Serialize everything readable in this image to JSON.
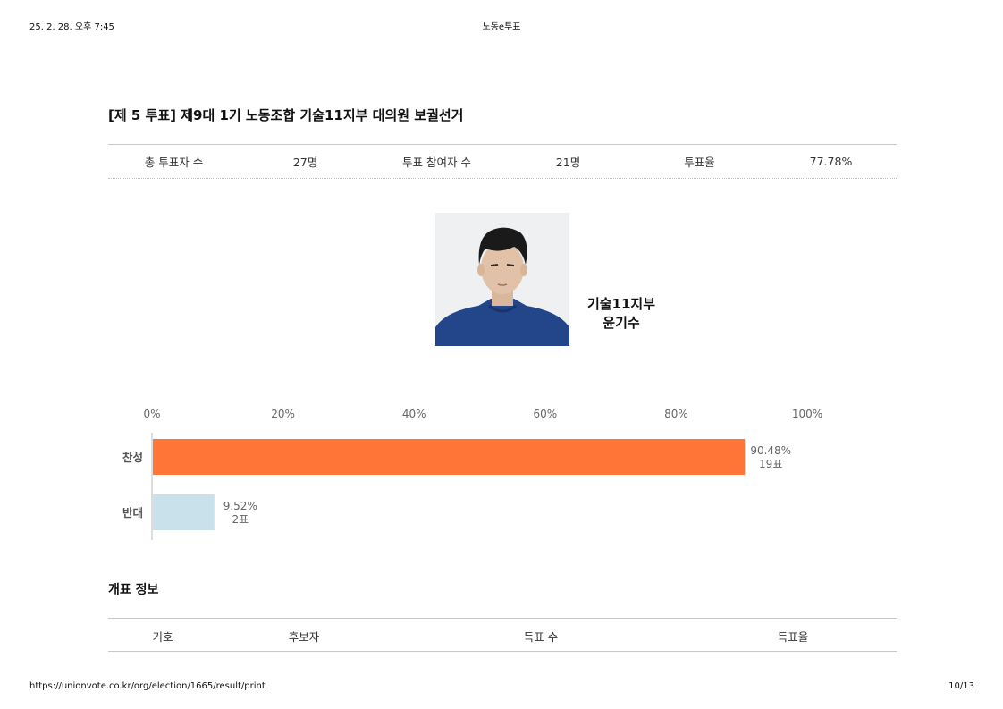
{
  "print_header": {
    "datetime": "25. 2. 28. 오후 7:45",
    "site_title": "노동e투표"
  },
  "print_footer": {
    "url": "https://unionvote.co.kr/org/election/1665/result/print",
    "page": "10/13"
  },
  "title": "[제 5 투표] 제9대 1기 노동조합 기술11지부 대의원 보궐선거",
  "stats": [
    {
      "label": "총 투표자 수",
      "value": "27명"
    },
    {
      "label": "투표 참여자 수",
      "value": "21명"
    },
    {
      "label": "투표율",
      "value": "77.78%"
    }
  ],
  "candidate": {
    "branch": "기술11지부",
    "name": "윤기수"
  },
  "chart_data": {
    "type": "bar",
    "orientation": "horizontal",
    "categories": [
      "찬성",
      "반대"
    ],
    "values": [
      90.48,
      9.52
    ],
    "votes": [
      19,
      2
    ],
    "data_labels": [
      [
        "90.48%",
        "19표"
      ],
      [
        "9.52%",
        "2표"
      ]
    ],
    "colors": [
      "#ff7538",
      "#c9e1eb"
    ],
    "xlim": [
      0,
      100
    ],
    "x_ticks": [
      "0%",
      "20%",
      "40%",
      "60%",
      "80%",
      "100%"
    ],
    "tick_values": [
      0,
      20,
      40,
      60,
      80,
      100
    ],
    "legend": "none",
    "grid": false
  },
  "count_info": {
    "title": "개표 정보",
    "columns": [
      "기호",
      "후보자",
      "득표 수",
      "득표율"
    ]
  }
}
